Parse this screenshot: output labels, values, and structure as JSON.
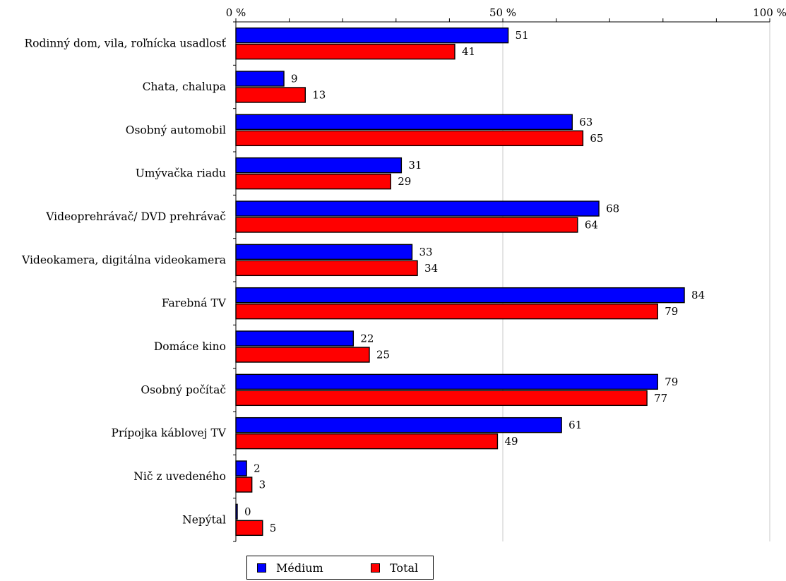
{
  "chart_data": {
    "type": "bar",
    "orientation": "horizontal",
    "categories": [
      "Rodinný dom, vila, roľnícka usadlosť",
      "Chata, chalupa",
      "Osobný automobil",
      "Umývačka riadu",
      "Videoprehrávač/ DVD prehrávač",
      "Videokamera, digitálna videokamera",
      "Farebná TV",
      "Domáce kino",
      "Osobný počítač",
      "Prípojka káblovej TV",
      "Nič z uvedeného",
      "Nepýtal"
    ],
    "series": [
      {
        "name": "Médium",
        "color": "#0000ff",
        "values": [
          51,
          9,
          63,
          31,
          68,
          33,
          84,
          22,
          79,
          61,
          2,
          0
        ]
      },
      {
        "name": "Total",
        "color": "#ff0000",
        "values": [
          41,
          13,
          65,
          29,
          64,
          34,
          79,
          25,
          77,
          49,
          3,
          5
        ]
      }
    ],
    "xlim": [
      0,
      100
    ],
    "x_tick_labels": [
      "0 %",
      "50 %",
      "100 %"
    ],
    "x_ticks": [
      0,
      50,
      100
    ],
    "grid": true,
    "legend": "bottom",
    "title": "",
    "xlabel": "",
    "ylabel": ""
  }
}
